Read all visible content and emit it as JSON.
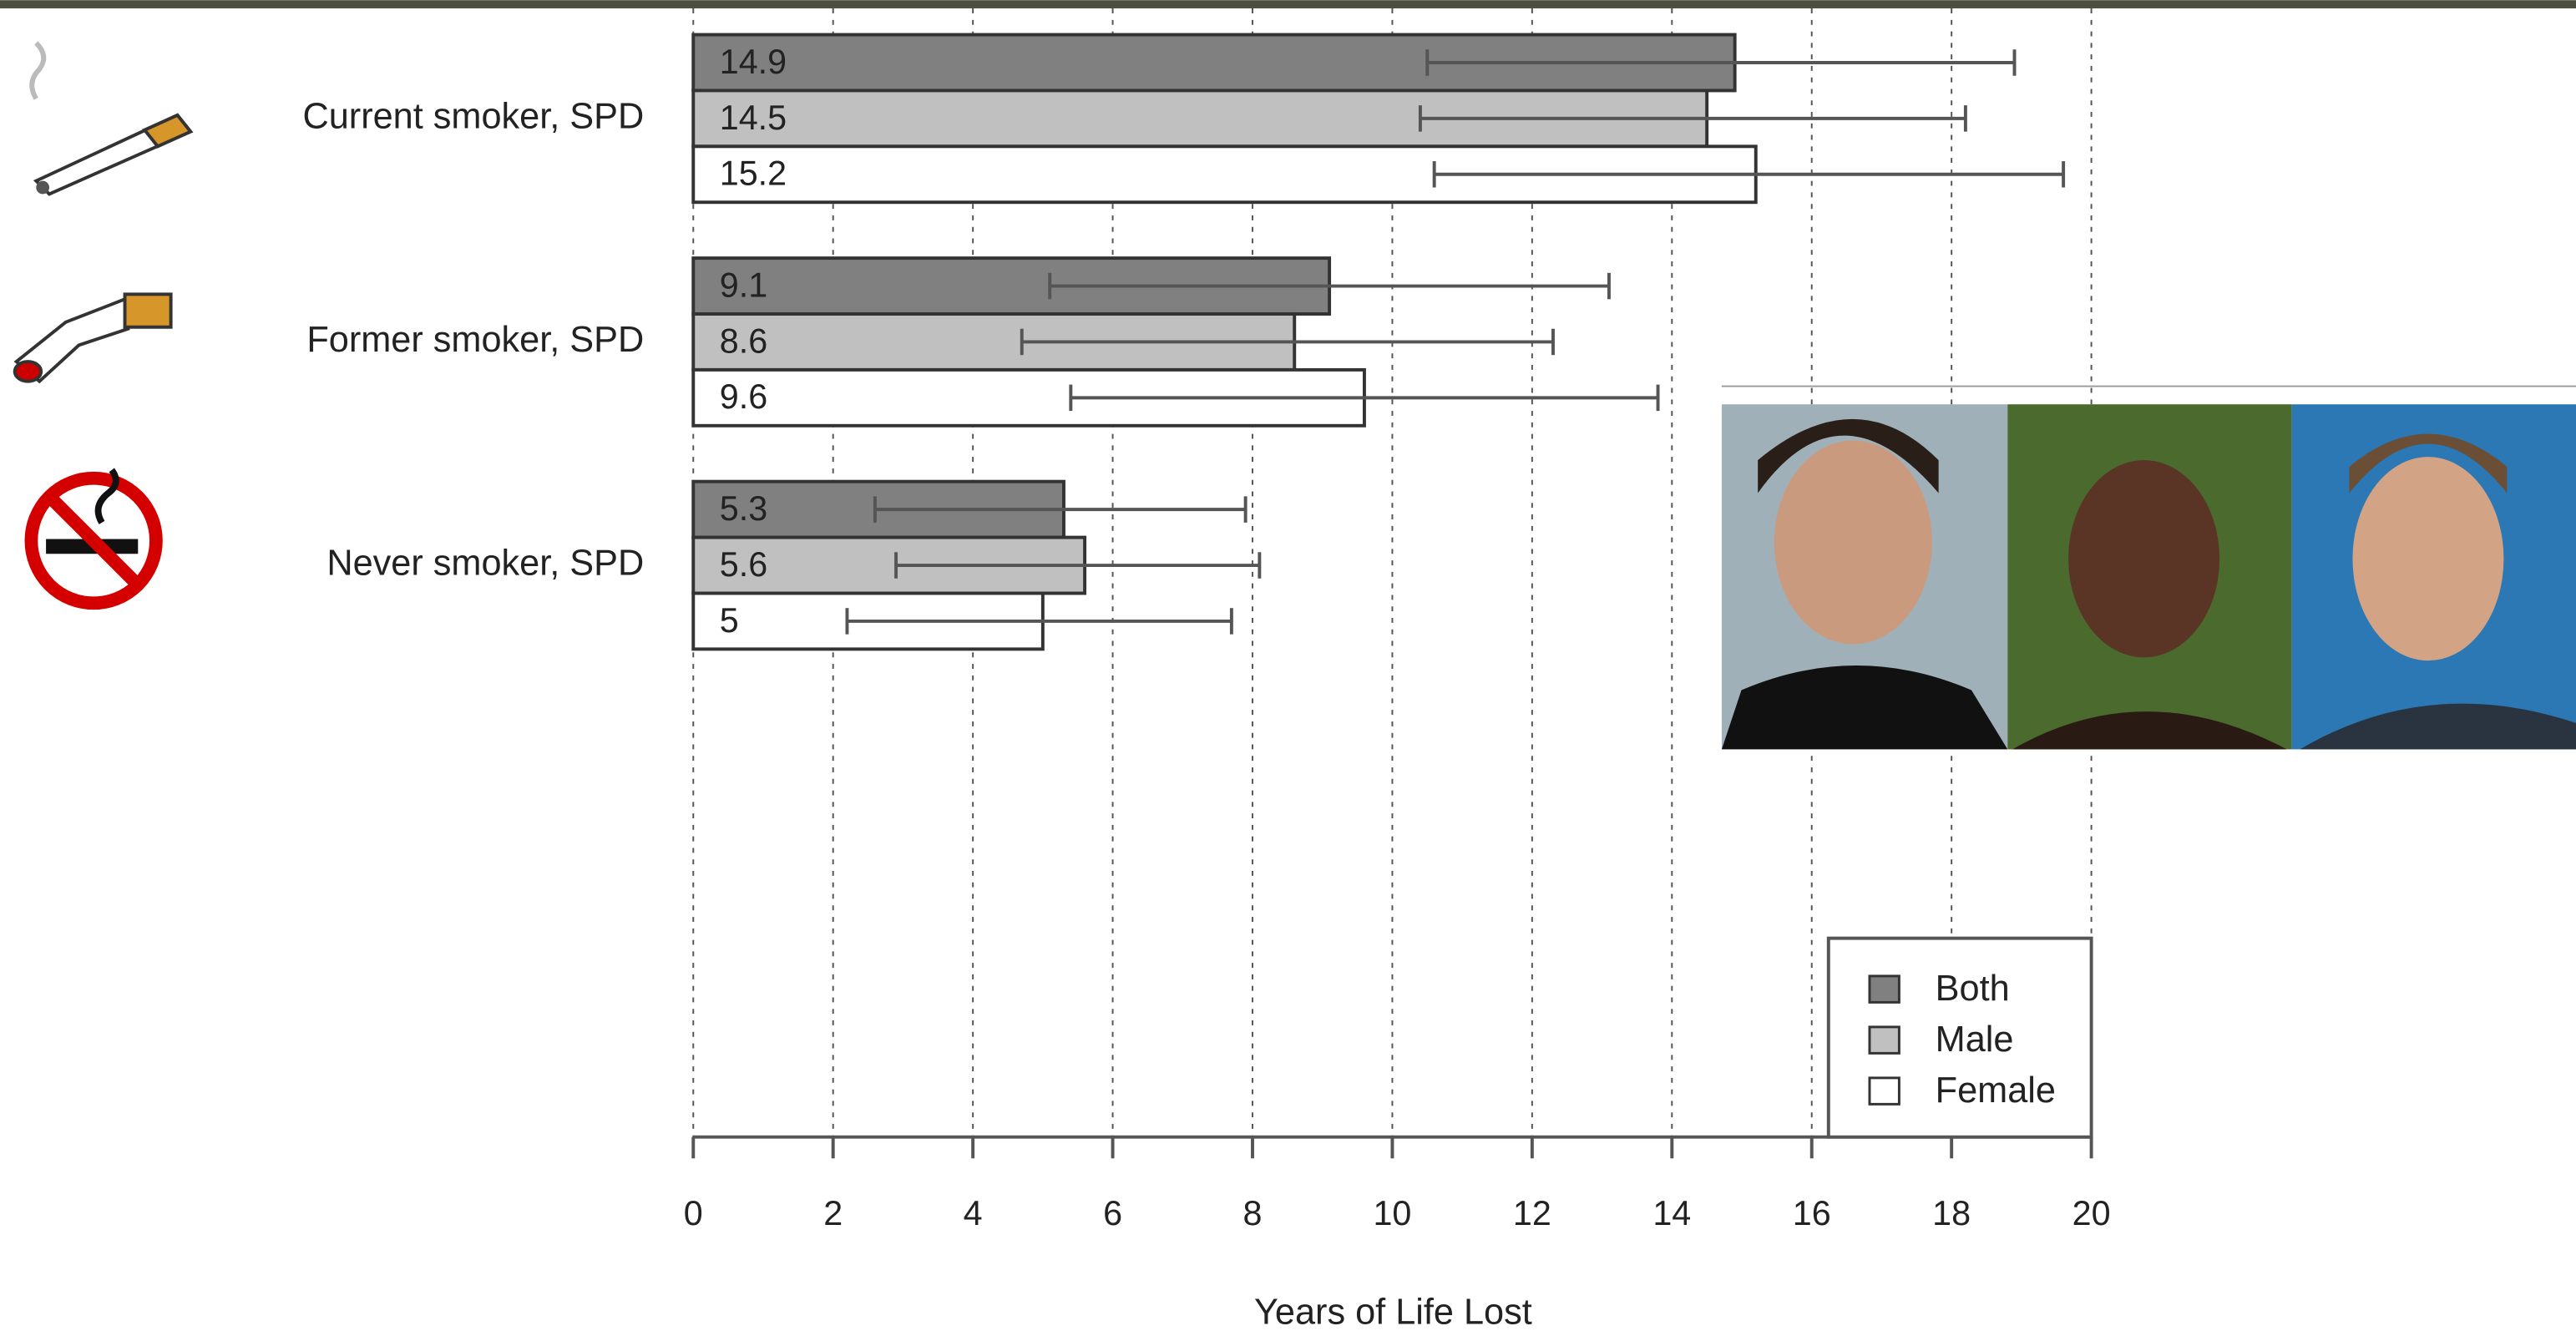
{
  "chart_data": {
    "type": "bar",
    "orientation": "horizontal",
    "categories": [
      "Current smoker, SPD",
      "Former smoker, SPD",
      "Never smoker, SPD"
    ],
    "series": [
      {
        "name": "Both",
        "color": "#808080",
        "values": [
          14.9,
          9.1,
          5.3
        ],
        "error_low": [
          10.5,
          5.1,
          2.6
        ],
        "error_high": [
          18.9,
          13.1,
          7.9
        ]
      },
      {
        "name": "Male",
        "color": "#c0c0c0",
        "values": [
          14.5,
          8.6,
          5.6
        ],
        "error_low": [
          10.4,
          4.7,
          2.9
        ],
        "error_high": [
          18.2,
          12.3,
          8.1
        ]
      },
      {
        "name": "Female",
        "color": "#ffffff",
        "values": [
          15.2,
          9.6,
          5
        ],
        "error_low": [
          10.6,
          5.4,
          2.2
        ],
        "error_high": [
          19.6,
          13.8,
          7.7
        ]
      }
    ],
    "x_label": "Years of Life Lost",
    "xlim": [
      0,
      20
    ],
    "xticks": [
      0,
      2,
      4,
      6,
      8,
      10,
      12,
      14,
      16,
      18,
      20
    ],
    "grid": true,
    "legend": "lower-right"
  }
}
